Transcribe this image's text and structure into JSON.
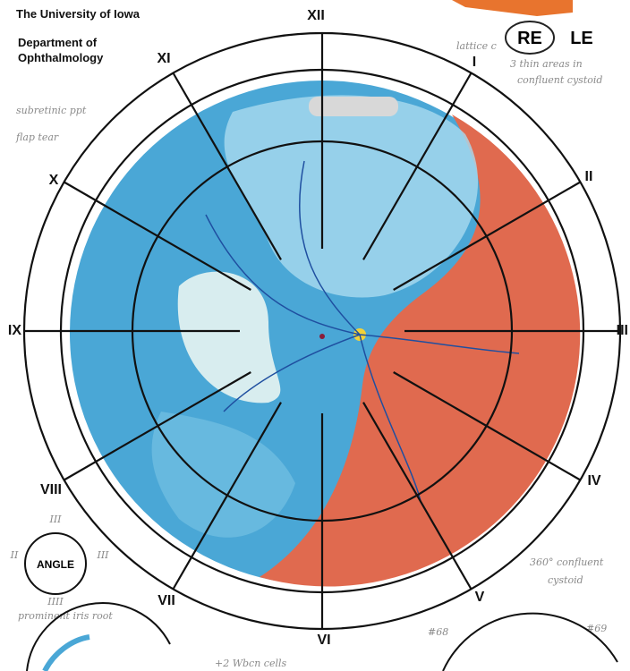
{
  "header": {
    "university": "The University of Iowa",
    "department_line1": "Department of",
    "department_line2": "Ophthalmology"
  },
  "eye": {
    "right": "RE",
    "left": "LE"
  },
  "clock_labels": [
    "XII",
    "I",
    "II",
    "III",
    "IV",
    "V",
    "VI",
    "VII",
    "VIII",
    "IX",
    "X",
    "XI"
  ],
  "notes": {
    "lattice_1": "lattice c",
    "lattice_2": "3 thin areas in",
    "lattice_3": "confluent cystoid",
    "subretinal": "subretinic ppt",
    "flap": "flap tear",
    "cystoid_1": "360° confluent",
    "cystoid_2": "cystoid",
    "iris": "prominent iris root",
    "cells": "+2 Wbcn cells",
    "n68": "#68",
    "n69": "#69"
  },
  "angle": {
    "label": "ANGLE",
    "top": "III",
    "left": "II",
    "right": "III",
    "bottom": "IIII"
  }
}
